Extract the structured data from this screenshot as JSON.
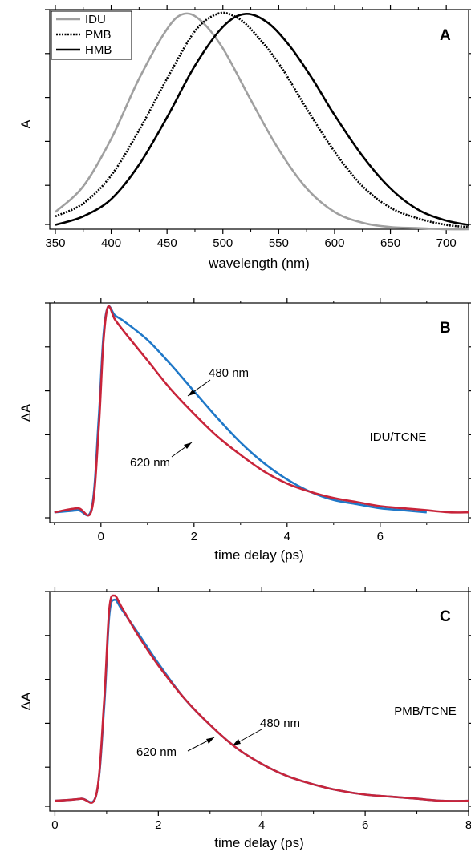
{
  "chart_data": [
    {
      "type": "line",
      "panel_label": "A",
      "xlabel": "wavelength (nm)",
      "ylabel": "A",
      "xlim": [
        345,
        720
      ],
      "ylim": [
        0,
        1.02
      ],
      "xticks": [
        350,
        400,
        450,
        500,
        550,
        600,
        650,
        700
      ],
      "legend": {
        "position": "top-left",
        "entries": [
          "IDU",
          "PMB",
          "HMB"
        ]
      },
      "series": [
        {
          "name": "IDU",
          "style": "solid",
          "color": "#a0a0a0",
          "x": [
            350,
            375,
            400,
            425,
            450,
            465,
            480,
            500,
            525,
            550,
            575,
            600,
            625,
            650,
            675,
            700,
            720
          ],
          "y": [
            0.08,
            0.2,
            0.42,
            0.7,
            0.93,
            1.0,
            0.97,
            0.84,
            0.6,
            0.37,
            0.19,
            0.08,
            0.03,
            0.01,
            0.005,
            0.0,
            0.0
          ]
        },
        {
          "name": "PMB",
          "style": "dotted",
          "color": "#000000",
          "x": [
            350,
            375,
            400,
            425,
            450,
            475,
            495,
            510,
            525,
            550,
            575,
            600,
            625,
            650,
            675,
            700,
            720
          ],
          "y": [
            0.06,
            0.12,
            0.25,
            0.46,
            0.7,
            0.92,
            1.0,
            0.99,
            0.93,
            0.77,
            0.56,
            0.36,
            0.2,
            0.1,
            0.05,
            0.02,
            0.01
          ]
        },
        {
          "name": "HMB",
          "style": "solid",
          "color": "#000000",
          "x": [
            350,
            375,
            400,
            425,
            450,
            475,
            500,
            520,
            540,
            560,
            580,
            600,
            625,
            650,
            675,
            700,
            720
          ],
          "y": [
            0.02,
            0.06,
            0.14,
            0.3,
            0.52,
            0.76,
            0.94,
            1.0,
            0.96,
            0.85,
            0.7,
            0.53,
            0.34,
            0.19,
            0.09,
            0.04,
            0.02
          ]
        }
      ]
    },
    {
      "type": "line",
      "panel_label": "B",
      "xlabel": "time delay (ps)",
      "ylabel": "ΔA",
      "xlim": [
        -1.1,
        7.9
      ],
      "ylim": [
        -0.05,
        1.02
      ],
      "xticks": [
        0,
        2,
        4,
        6
      ],
      "annotations": [
        "480 nm",
        "620 nm",
        "IDU/TCNE"
      ],
      "series": [
        {
          "name": "480 nm",
          "color": "#1f78c8",
          "x": [
            -1.0,
            -0.5,
            -0.2,
            -0.05,
            0.05,
            0.15,
            0.3,
            0.5,
            1.0,
            1.5,
            2.0,
            2.5,
            3.0,
            3.5,
            4.0,
            4.5,
            5.0,
            5.5,
            6.0,
            6.5,
            7.0
          ],
          "y": [
            0.0,
            0.01,
            0.02,
            0.45,
            0.85,
            1.0,
            0.96,
            0.93,
            0.84,
            0.72,
            0.59,
            0.46,
            0.34,
            0.24,
            0.16,
            0.1,
            0.06,
            0.04,
            0.02,
            0.01,
            0.0
          ]
        },
        {
          "name": "620 nm",
          "color": "#c8243a",
          "x": [
            -1.0,
            -0.5,
            -0.2,
            -0.05,
            0.05,
            0.15,
            0.3,
            0.5,
            1.0,
            1.5,
            2.0,
            2.5,
            3.0,
            3.5,
            4.0,
            4.5,
            5.0,
            5.5,
            6.0,
            6.5,
            7.0,
            7.5,
            7.9
          ],
          "y": [
            0.0,
            0.02,
            0.01,
            0.4,
            0.82,
            1.0,
            0.94,
            0.88,
            0.74,
            0.6,
            0.48,
            0.37,
            0.28,
            0.2,
            0.14,
            0.1,
            0.07,
            0.05,
            0.03,
            0.02,
            0.01,
            0.0,
            0.0
          ]
        }
      ]
    },
    {
      "type": "line",
      "panel_label": "C",
      "xlabel": "time delay (ps)",
      "ylabel": "ΔA",
      "xlim": [
        -0.1,
        8.0
      ],
      "ylim": [
        -0.05,
        1.02
      ],
      "xticks": [
        0,
        2,
        4,
        6,
        8
      ],
      "annotations": [
        "480 nm",
        "620 nm",
        "PMB/TCNE"
      ],
      "series": [
        {
          "name": "480 nm",
          "color": "#1f78c8",
          "x": [
            0.0,
            0.5,
            0.8,
            0.95,
            1.05,
            1.15,
            1.3,
            1.6,
            2.0,
            2.5,
            3.0,
            3.5,
            4.0,
            4.5,
            5.0,
            5.5,
            6.0,
            6.5,
            7.0,
            7.5,
            8.0
          ],
          "y": [
            0.0,
            0.01,
            0.03,
            0.45,
            0.9,
            0.98,
            0.93,
            0.82,
            0.67,
            0.5,
            0.37,
            0.26,
            0.18,
            0.12,
            0.08,
            0.05,
            0.03,
            0.02,
            0.01,
            0.0,
            0.0
          ]
        },
        {
          "name": "620 nm",
          "color": "#c8243a",
          "x": [
            0.0,
            0.5,
            0.8,
            0.95,
            1.05,
            1.15,
            1.3,
            1.6,
            2.0,
            2.5,
            3.0,
            3.5,
            4.0,
            4.5,
            5.0,
            5.5,
            6.0,
            6.5,
            7.0,
            7.5,
            8.0
          ],
          "y": [
            0.0,
            0.01,
            0.03,
            0.48,
            0.93,
            1.0,
            0.94,
            0.81,
            0.66,
            0.5,
            0.37,
            0.26,
            0.18,
            0.12,
            0.08,
            0.05,
            0.03,
            0.02,
            0.01,
            0.0,
            0.0
          ]
        }
      ]
    }
  ]
}
